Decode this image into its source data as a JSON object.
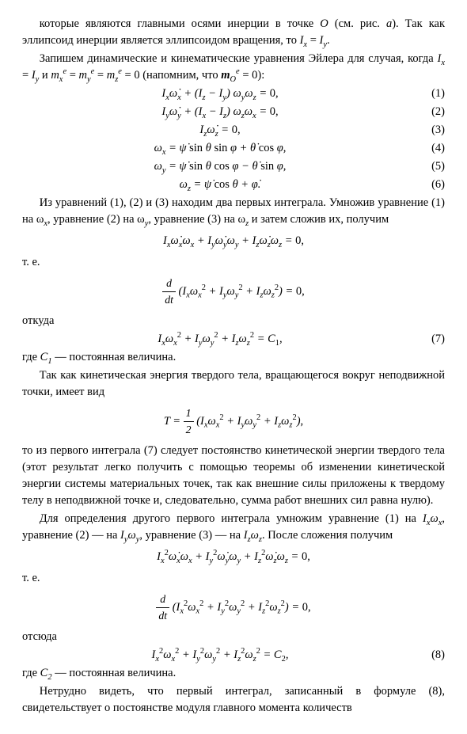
{
  "p1": "которые являются главными осями инерции в точке O (см. рис. а). Так как эллипсоид инерции является эллипсоидом вращения, то Iₓ = I_y.",
  "p2": "Запишем динамические и кинематические уравнения Эйлера для случая, когда Iₓ = I_y и mₓᵉ = m_yᵉ = m_zᵉ = 0 (напомним, что m_Oᵉ = 0):",
  "eq1": "Iₓω̇ₓ + (I_z − I_y) ω_y ω_z = 0,",
  "eq2": "I_y ω̇_y + (Iₓ − I_z) ω_z ωₓ = 0,",
  "eq3": "I_z ω̇_z = 0,",
  "eq4": "ωₓ = ψ̇ sin θ sin φ + θ̇ cos φ,",
  "eq5": "ω_y = ψ̇ sin θ cos φ − θ̇ sin φ,",
  "eq6": "ω_z = ψ̇ cos θ + φ̇.",
  "n1": "(1)",
  "n2": "(2)",
  "n3": "(3)",
  "n4": "(4)",
  "n5": "(5)",
  "n6": "(6)",
  "p3": "Из уравнений (1), (2) и (3) находим два первых интеграла. Умножив уравнение (1) на ωₓ, уравнение (2) на ω_y, уравнение (3) на ω_z и затем сложив их, получим",
  "eq_a": "Iₓ ω̇ₓ ωₓ + I_y ω̇_y ω_y + I_z ω̇_z ω_z = 0,",
  "te": "т. е.",
  "eq_b_num": "d",
  "eq_b_den": "dt",
  "eq_b_rest": " (Iₓ ωₓ² + I_y ω_y² + I_z ω_z²) = 0,",
  "otkuda": "откуда",
  "eq7": "Iₓ ωₓ² + I_y ω_y² + I_z ω_z² = C₁,",
  "n7": "(7)",
  "p4": "где C₁ — постоянная величина.",
  "p5": "Так как кинетическая энергия твердого тела, вращающегося вокруг неподвижной точки, имеет вид",
  "eqT_lhs": "T = ",
  "eqT_num": "1",
  "eqT_den": "2",
  "eqT_rest": " (Iₓ ωₓ² + I_y ω_y² + I_z ω_z²),",
  "p6": "то из первого интеграла (7) следует постоянство кинетической энергии твердого тела (этот результат легко получить с помощью теоремы об изменении кинетической энергии системы материальных точек, так как внешние силы приложены к твердому телу в неподвижной точке и, следовательно, сумма работ внешних сил равна нулю).",
  "p7": "Для определения другого первого интеграла умножим уравнение (1) на Iₓωₓ, уравнение (2) — на I_yω_y, уравнение (3) — на I_zω_z. После сложения получим",
  "eq_c": "Iₓ² ω̇ₓ ωₓ + I_y² ω̇_y ω_y + I_z² ω̇_z ω_z = 0,",
  "eq_d_num": "d",
  "eq_d_den": "dt",
  "eq_d_rest": " (Iₓ² ωₓ² + I_y² ω_y² + I_z² ω_z²) = 0,",
  "otsuda": "отсюда",
  "eq8": "Iₓ² ωₓ² + I_y² ω_y² + I_z² ω_z² = C₂,",
  "n8": "(8)",
  "p8": "где C₂ — постоянная величина.",
  "p9": "Нетрудно видеть, что первый интеграл, записанный в формуле (8), свидетельствует о постоянстве модуля главного момента количеств"
}
